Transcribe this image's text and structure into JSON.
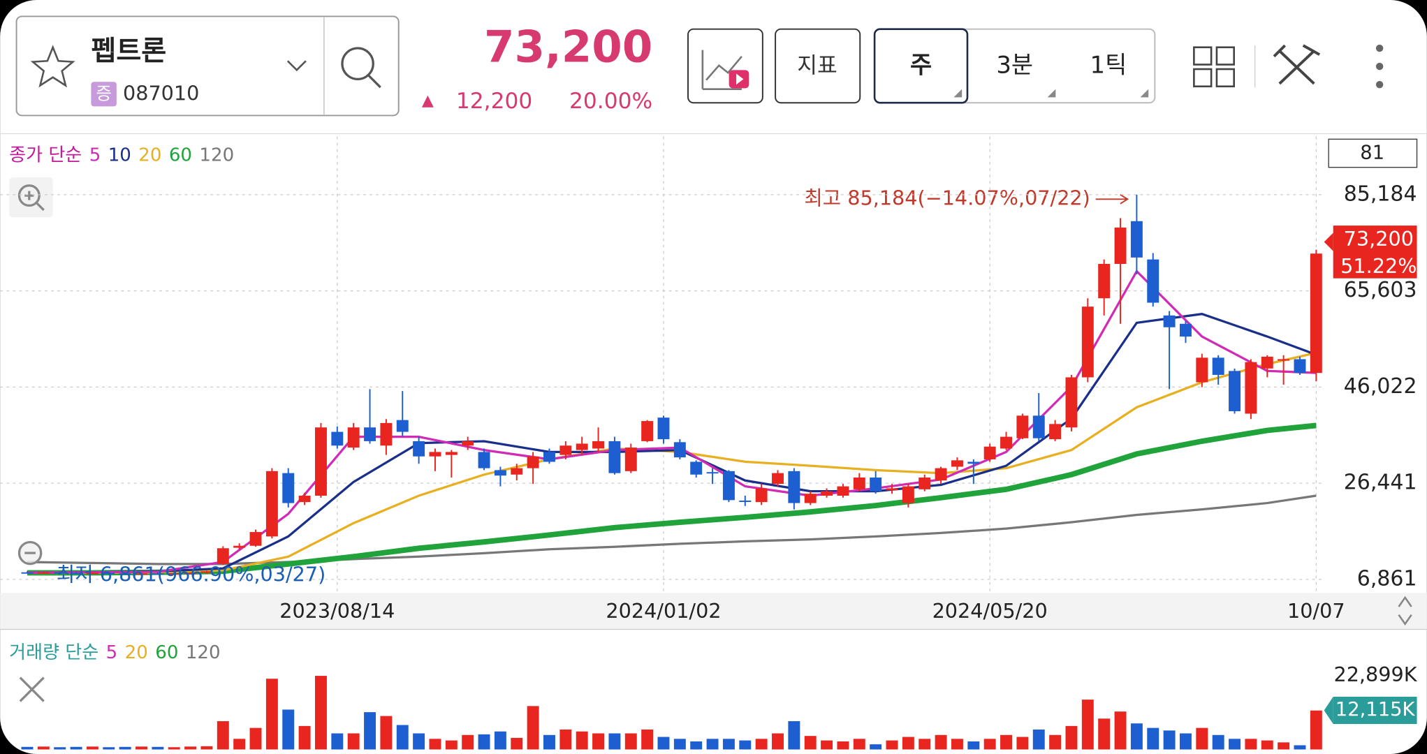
{
  "header": {
    "name": "펩트론",
    "market": "증",
    "code": "087010",
    "price": "73,200",
    "change_symbol": "▲",
    "change": "12,200",
    "change_rate": "20.00%"
  },
  "toolbar": {
    "indicator": "지표",
    "periods": [
      "주",
      "3분",
      "1틱"
    ]
  },
  "chart_data": [
    {
      "type": "candlestick",
      "legend_label": "종가 단순",
      "count_label": "81",
      "up_color": "#e8261f",
      "down_color": "#1d5fd0",
      "categories": [
        null,
        null,
        null,
        null,
        null,
        null,
        null,
        null,
        null,
        null,
        null,
        null,
        null,
        null,
        null,
        null,
        null,
        null,
        null,
        "2023/08/14",
        null,
        null,
        null,
        null,
        null,
        null,
        null,
        null,
        null,
        null,
        null,
        null,
        null,
        null,
        null,
        null,
        null,
        null,
        null,
        "2024/01/02",
        null,
        null,
        null,
        null,
        null,
        null,
        null,
        null,
        null,
        null,
        null,
        null,
        null,
        null,
        null,
        null,
        null,
        null,
        null,
        "2024/05/20",
        null,
        null,
        null,
        null,
        null,
        null,
        null,
        null,
        null,
        null,
        null,
        null,
        null,
        null,
        null,
        null,
        null,
        null,
        null,
        "10/07"
      ],
      "open": [
        8300,
        8200,
        8300,
        8200,
        8100,
        8200,
        8100,
        8000,
        8100,
        8000,
        8100,
        8200,
        10000,
        13300,
        13700,
        15600,
        28500,
        22600,
        23900,
        36900,
        33700,
        37800,
        34100,
        39300,
        35000,
        31900,
        32200,
        34100,
        32800,
        29100,
        28200,
        29500,
        32800,
        32200,
        33200,
        33500,
        35000,
        28900,
        35000,
        39800,
        34800,
        30800,
        28700,
        28900,
        22900,
        22600,
        26300,
        28900,
        22400,
        23900,
        23900,
        25200,
        27600,
        25000,
        22400,
        25200,
        27000,
        29800,
        30800,
        31300,
        33500,
        35600,
        40200,
        35400,
        37800,
        48000,
        64100,
        71100,
        79800,
        72000,
        60600,
        58900,
        47000,
        52000,
        49300,
        40600,
        49800,
        51400,
        51700,
        48900
      ],
      "high": [
        8500,
        8400,
        8500,
        8400,
        8300,
        8400,
        8300,
        8200,
        8300,
        8200,
        8300,
        8600,
        13600,
        14200,
        17000,
        29500,
        29500,
        24500,
        38700,
        38000,
        38700,
        45600,
        39500,
        45200,
        35900,
        33500,
        33200,
        35900,
        33500,
        29800,
        30400,
        32800,
        33500,
        35000,
        35900,
        37800,
        35900,
        34500,
        39300,
        40200,
        35400,
        31100,
        29500,
        29100,
        23900,
        26300,
        29100,
        29500,
        24800,
        25400,
        26300,
        28500,
        28900,
        26300,
        26300,
        28200,
        29800,
        31700,
        31300,
        34500,
        36900,
        40600,
        44800,
        39300,
        48500,
        64100,
        72000,
        80400,
        85184,
        73300,
        61500,
        59500,
        52800,
        52500,
        49800,
        51700,
        52500,
        52500,
        52200,
        74000
      ],
      "low": [
        8100,
        8000,
        8100,
        8000,
        7900,
        8000,
        7900,
        7800,
        7900,
        7800,
        7900,
        8000,
        9800,
        13000,
        13500,
        15200,
        21500,
        22000,
        23500,
        33500,
        33200,
        34500,
        32200,
        36000,
        30400,
        28900,
        27600,
        33200,
        29100,
        25800,
        27000,
        26300,
        30400,
        31300,
        32200,
        32800,
        28200,
        28500,
        34800,
        34500,
        31300,
        27600,
        26300,
        22600,
        21800,
        22000,
        25800,
        21100,
        22000,
        23500,
        23500,
        24800,
        24300,
        24300,
        21500,
        24800,
        26300,
        29100,
        26300,
        30800,
        33200,
        35400,
        35000,
        35000,
        37000,
        47000,
        60600,
        58900,
        69000,
        62400,
        45600,
        55000,
        46000,
        46500,
        40600,
        39500,
        48000,
        46500,
        48500,
        47200
      ],
      "close": [
        8200,
        8300,
        8200,
        8100,
        8200,
        8100,
        8000,
        8100,
        8000,
        8100,
        8200,
        8500,
        13200,
        13700,
        16500,
        28900,
        22400,
        23900,
        37800,
        34100,
        37800,
        35000,
        38700,
        36900,
        31900,
        32800,
        32800,
        35000,
        29500,
        28000,
        29500,
        31900,
        30800,
        34100,
        34500,
        35000,
        28500,
        33700,
        39100,
        35400,
        31700,
        28200,
        28500,
        23000,
        22800,
        25400,
        28500,
        22400,
        24300,
        24800,
        25800,
        27600,
        24800,
        25400,
        25800,
        27600,
        29500,
        31100,
        30400,
        33900,
        35900,
        40200,
        35600,
        38500,
        48000,
        62400,
        71100,
        78500,
        72400,
        63200,
        58200,
        56300,
        52000,
        48500,
        41100,
        51100,
        52200,
        51700,
        48900,
        73200
      ],
      "ylim": [
        4083,
        97053
      ],
      "yticks": [
        {
          "value": 6861,
          "label": "6,861"
        },
        {
          "value": 26441,
          "label": "26,441"
        },
        {
          "value": 46022,
          "label": "46,022"
        },
        {
          "value": 65603,
          "label": "65,603"
        },
        {
          "value": 85184,
          "label": "85,184"
        }
      ],
      "grid": true,
      "high_annotation": "최고 85,184(−14.07%,07/22)",
      "low_annotation": "최저 6,861(966.90%,03/27)",
      "last_price_label": "73,200",
      "last_change_label": "51.22%",
      "series": [
        {
          "name": "5",
          "color": "#d12bb5",
          "x": [
            0,
            4,
            8,
            12,
            16,
            20,
            24,
            28,
            32,
            36,
            40,
            44,
            48,
            52,
            56,
            60,
            64,
            68,
            72,
            76,
            79
          ],
          "values": [
            8200,
            8300,
            8400,
            10400,
            20200,
            35900,
            35900,
            33200,
            31300,
            33200,
            33700,
            25800,
            23900,
            25400,
            27200,
            32800,
            46100,
            69600,
            56300,
            49300,
            48900
          ]
        },
        {
          "name": "10",
          "color": "#1a2f8a",
          "x": [
            0,
            4,
            8,
            12,
            16,
            20,
            24,
            28,
            32,
            36,
            40,
            44,
            48,
            52,
            56,
            60,
            64,
            68,
            72,
            76,
            79
          ],
          "values": [
            8200,
            8300,
            8500,
            9100,
            15600,
            26700,
            34600,
            35000,
            32800,
            32800,
            33200,
            27000,
            24800,
            24800,
            26100,
            30000,
            39600,
            59100,
            60900,
            56300,
            52600
          ]
        },
        {
          "name": "20",
          "color": "#e8b020",
          "x": [
            0,
            4,
            8,
            12,
            16,
            20,
            24,
            28,
            32,
            36,
            40,
            44,
            48,
            52,
            56,
            60,
            64,
            68,
            72,
            76,
            79
          ],
          "values": [
            8200,
            8200,
            8300,
            8700,
            11500,
            18300,
            23900,
            28200,
            31300,
            33500,
            32800,
            30800,
            30000,
            29100,
            28500,
            29500,
            33200,
            41900,
            47000,
            50700,
            53000
          ]
        },
        {
          "name": "60",
          "color": "#1fa33a",
          "x": [
            0,
            4,
            8,
            12,
            16,
            20,
            24,
            28,
            32,
            36,
            40,
            44,
            48,
            52,
            56,
            60,
            64,
            68,
            72,
            76,
            79
          ],
          "values": [
            8200,
            8200,
            8300,
            8500,
            10000,
            11500,
            13200,
            14500,
            15900,
            17400,
            18500,
            19500,
            20600,
            21900,
            23500,
            25200,
            28200,
            32400,
            35000,
            37200,
            38200
          ]
        },
        {
          "name": "120",
          "color": "#777777",
          "x": [
            0,
            4,
            8,
            12,
            16,
            20,
            24,
            28,
            32,
            36,
            40,
            44,
            48,
            52,
            56,
            60,
            64,
            68,
            72,
            76,
            79
          ],
          "values": [
            10400,
            10200,
            10000,
            10000,
            10400,
            11000,
            11500,
            12200,
            13000,
            13500,
            14100,
            14600,
            15000,
            15600,
            16300,
            17200,
            18500,
            20000,
            21100,
            22400,
            23900
          ]
        }
      ]
    },
    {
      "type": "bar",
      "legend_label": "거래량 단순",
      "legend_items": [
        {
          "name": "5",
          "color": "#d12bb5"
        },
        {
          "name": "20",
          "color": "#e8b020"
        },
        {
          "name": "60",
          "color": "#1fa33a"
        },
        {
          "name": "120",
          "color": "#777777"
        }
      ],
      "values": [
        800,
        900,
        700,
        800,
        900,
        700,
        800,
        900,
        800,
        700,
        900,
        1000,
        8800,
        3300,
        6700,
        22000,
        12400,
        7300,
        22899,
        5000,
        5000,
        11600,
        10400,
        7600,
        5000,
        3300,
        2800,
        4500,
        4700,
        5600,
        3600,
        13500,
        4500,
        6200,
        5600,
        5000,
        5000,
        5000,
        6200,
        3900,
        3300,
        2500,
        3300,
        3300,
        2800,
        3300,
        5000,
        8800,
        4200,
        2800,
        2500,
        3300,
        1600,
        2800,
        3900,
        3300,
        4500,
        3300,
        2500,
        3300,
        4500,
        3900,
        6200,
        4500,
        7300,
        15500,
        9600,
        11800,
        8100,
        6700,
        5900,
        5000,
        6700,
        4500,
        3300,
        3300,
        2800,
        2200,
        1300,
        12115
      ],
      "ylim": [
        0,
        24900
      ],
      "yticks": [
        {
          "value": 22899,
          "label": "22,899K"
        }
      ],
      "last_value_label": "12,115K"
    }
  ]
}
